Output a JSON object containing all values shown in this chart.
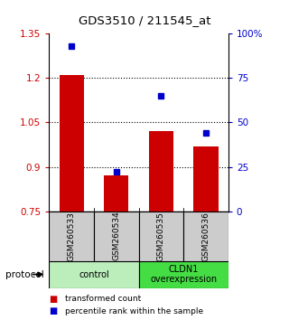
{
  "title": "GDS3510 / 211545_at",
  "samples": [
    "GSM260533",
    "GSM260534",
    "GSM260535",
    "GSM260536"
  ],
  "bar_values": [
    1.21,
    0.87,
    1.02,
    0.97
  ],
  "percentile_values": [
    93,
    22,
    65,
    44
  ],
  "bar_color": "#cc0000",
  "dot_color": "#0000cc",
  "ylim_left": [
    0.75,
    1.35
  ],
  "ylim_right": [
    0,
    100
  ],
  "yticks_left": [
    0.75,
    0.9,
    1.05,
    1.2,
    1.35
  ],
  "ytick_labels_left": [
    "0.75",
    "0.9",
    "1.05",
    "1.2",
    "1.35"
  ],
  "yticks_right": [
    0,
    25,
    50,
    75,
    100
  ],
  "ytick_labels_right": [
    "0",
    "25",
    "50",
    "75",
    "100%"
  ],
  "groups": [
    {
      "label": "control",
      "samples": [
        0,
        1
      ],
      "color": "#bbeebb"
    },
    {
      "label": "CLDN1\noverexpression",
      "samples": [
        2,
        3
      ],
      "color": "#44dd44"
    }
  ],
  "legend_bar_label": "transformed count",
  "legend_dot_label": "percentile rank within the sample",
  "protocol_label": "protocol",
  "bar_baseline": 0.75,
  "sample_box_color": "#cccccc",
  "bg_color": "#ffffff",
  "grid_color": "#000000",
  "bar_width": 0.55
}
